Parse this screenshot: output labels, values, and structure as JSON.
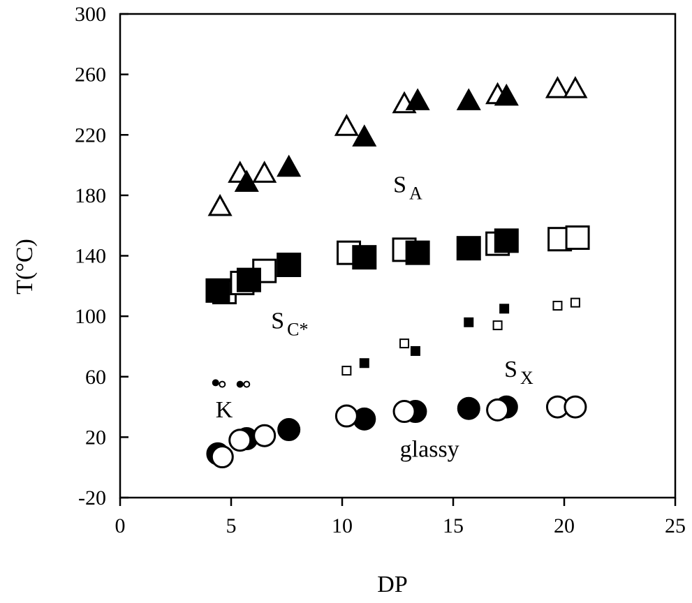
{
  "chart_data": {
    "type": "scatter",
    "title": "",
    "xlabel": "DP",
    "ylabel": "T(°C)",
    "xlim": [
      0,
      25
    ],
    "ylim": [
      -20,
      300
    ],
    "xticks": [
      0,
      5,
      10,
      15,
      20,
      25
    ],
    "yticks": [
      -20,
      20,
      60,
      100,
      140,
      180,
      220,
      260,
      300
    ],
    "grid": false,
    "legend": "none",
    "annotations": [
      {
        "text": "S",
        "sub": "A",
        "x": 12.3,
        "y": 182
      },
      {
        "text": "S",
        "sub": "C*",
        "x": 6.8,
        "y": 92
      },
      {
        "text": "S",
        "sub": "X",
        "x": 17.3,
        "y": 60
      },
      {
        "text": "K",
        "sub": "",
        "x": 4.3,
        "y": 33
      },
      {
        "text": "glassy",
        "sub": "",
        "x": 12.6,
        "y": 7
      }
    ],
    "series": [
      {
        "marker": "triangle-open",
        "size": 30,
        "x": [
          4.5,
          5.4,
          6.5,
          10.2,
          12.8,
          17.0,
          19.7,
          20.5
        ],
        "y": [
          172,
          194,
          194,
          225,
          240,
          246,
          250,
          250
        ]
      },
      {
        "marker": "triangle-filled",
        "size": 30,
        "x": [
          5.7,
          7.6,
          11.0,
          13.4,
          15.7,
          17.4
        ],
        "y": [
          188,
          198,
          218,
          242,
          242,
          245
        ]
      },
      {
        "marker": "square-open",
        "size": 32,
        "x": [
          4.7,
          5.5,
          6.5,
          10.3,
          12.8,
          17.0,
          19.8,
          20.6
        ],
        "y": [
          116,
          122,
          130,
          142,
          144,
          148,
          151,
          152
        ]
      },
      {
        "marker": "square-filled",
        "size": 32,
        "x": [
          4.4,
          5.8,
          7.6,
          11.0,
          13.4,
          15.7,
          17.4
        ],
        "y": [
          117,
          124,
          134,
          139,
          142,
          145,
          150
        ]
      },
      {
        "marker": "square-open",
        "size": 12,
        "x": [
          10.2,
          12.8,
          17.0,
          19.7,
          20.5
        ],
        "y": [
          64,
          82,
          94,
          107,
          109
        ]
      },
      {
        "marker": "square-filled",
        "size": 12,
        "x": [
          11.0,
          13.3,
          15.7,
          17.3
        ],
        "y": [
          69,
          77,
          96,
          105
        ]
      },
      {
        "marker": "circle-filled",
        "size": 8,
        "x": [
          4.3,
          5.4
        ],
        "y": [
          56,
          55
        ]
      },
      {
        "marker": "circle-open",
        "size": 8,
        "x": [
          4.6,
          5.7
        ],
        "y": [
          55,
          55
        ]
      },
      {
        "marker": "circle-filled",
        "size": 30,
        "x": [
          4.4,
          5.7,
          7.6,
          11.0,
          13.3,
          15.7,
          17.4
        ],
        "y": [
          9,
          19,
          25,
          32,
          37,
          39,
          40
        ]
      },
      {
        "marker": "circle-open",
        "size": 30,
        "x": [
          4.6,
          5.4,
          6.5,
          10.2,
          12.8,
          17.0,
          19.7,
          20.5
        ],
        "y": [
          7,
          18,
          21,
          34,
          37,
          38,
          40,
          40
        ]
      }
    ]
  },
  "colors": {
    "ink": "#000000",
    "background": "#ffffff"
  }
}
